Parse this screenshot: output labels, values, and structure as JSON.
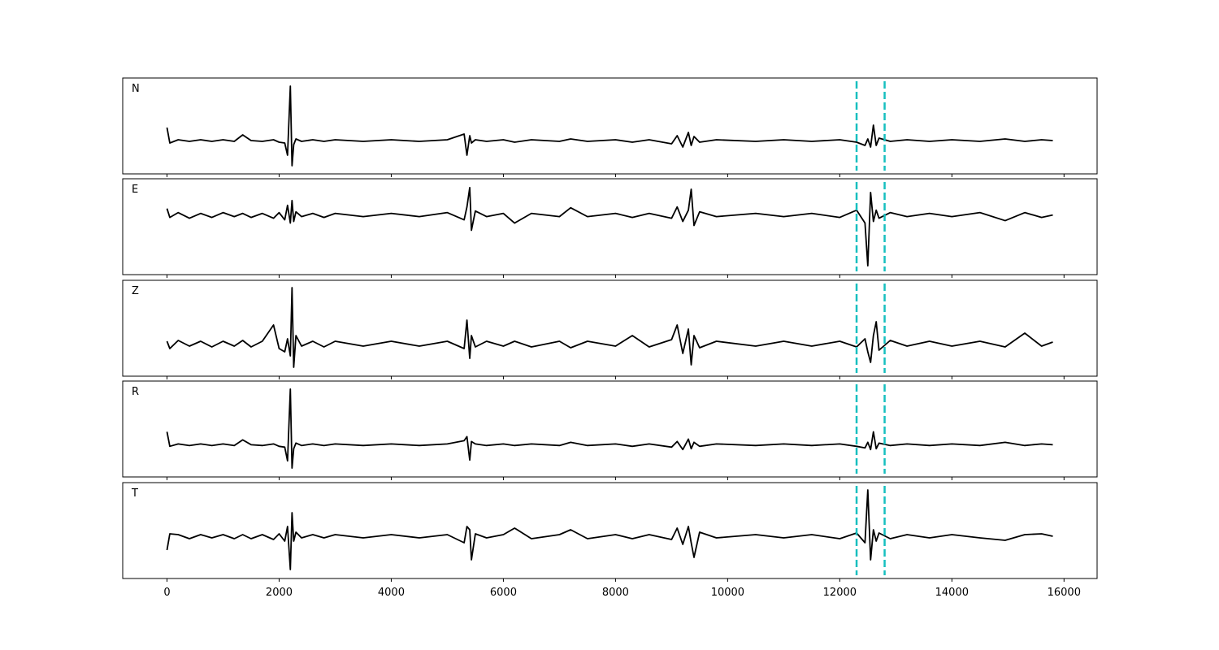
{
  "chart_data": {
    "type": "line",
    "x": [
      0,
      50,
      200,
      400,
      600,
      800,
      1000,
      1200,
      1350,
      1500,
      1700,
      1900,
      2000,
      2100,
      2150,
      2200,
      2230,
      2260,
      2300,
      2400,
      2600,
      2800,
      3000,
      3500,
      4000,
      4500,
      5000,
      5300,
      5350,
      5400,
      5430,
      5500,
      5700,
      6000,
      6200,
      6500,
      7000,
      7200,
      7500,
      8000,
      8300,
      8600,
      9000,
      9100,
      9200,
      9300,
      9350,
      9400,
      9500,
      9800,
      10500,
      11000,
      11500,
      12000,
      12300,
      12450,
      12500,
      12550,
      12600,
      12650,
      12700,
      12900,
      13200,
      13600,
      14000,
      14500,
      14950,
      15300,
      15600,
      15800
    ],
    "xlim": [
      -790,
      16590
    ],
    "xticks": [
      0,
      2000,
      4000,
      6000,
      8000,
      10000,
      12000,
      14000,
      16000
    ],
    "vlines": [
      12300,
      12800
    ],
    "vline_color": "#17bfbf",
    "series": [
      {
        "name": "N",
        "color": "#000000",
        "ylim": [
          -41,
          77
        ],
        "values": [
          16,
          -3,
          1,
          -1,
          1,
          -1,
          1,
          -1,
          7,
          0,
          -1,
          1,
          -2,
          -3,
          -18,
          67,
          -31,
          -5,
          2,
          -1,
          1,
          -1,
          1,
          -1,
          1,
          -1,
          1,
          8,
          -18,
          6,
          -3,
          1,
          -1,
          1,
          -2,
          1,
          -1,
          2,
          -1,
          1,
          -2,
          1,
          -4,
          6,
          -8,
          10,
          -6,
          5,
          -2,
          1,
          -1,
          1,
          -1,
          1,
          -2,
          -6,
          2,
          -8,
          19,
          -6,
          3,
          -1,
          1,
          -1,
          1,
          -1,
          2,
          -1,
          1,
          0
        ]
      },
      {
        "name": "E",
        "color": "#000000",
        "ylim": [
          -74,
          45
        ],
        "values": [
          8,
          -3,
          3,
          -4,
          2,
          -3,
          3,
          -2,
          2,
          -3,
          2,
          -4,
          3,
          -6,
          12,
          -10,
          18,
          -8,
          4,
          -2,
          2,
          -3,
          2,
          -2,
          2,
          -2,
          3,
          -6,
          10,
          34,
          -19,
          5,
          -2,
          2,
          -10,
          2,
          -2,
          9,
          -2,
          2,
          -3,
          2,
          -4,
          10,
          -8,
          6,
          32,
          -13,
          4,
          -2,
          2,
          -2,
          2,
          -3,
          6,
          -10,
          -63,
          28,
          -8,
          6,
          -4,
          3,
          -2,
          2,
          -2,
          3,
          -7,
          3,
          -3,
          0
        ]
      },
      {
        "name": "Z",
        "color": "#000000",
        "ylim": [
          -40,
          78
        ],
        "values": [
          3,
          -6,
          4,
          -3,
          3,
          -4,
          3,
          -3,
          4,
          -4,
          3,
          23,
          -6,
          -10,
          6,
          -15,
          69,
          -29,
          10,
          -3,
          3,
          -4,
          3,
          -3,
          3,
          -3,
          3,
          -6,
          29,
          -18,
          10,
          -4,
          3,
          -3,
          3,
          -4,
          3,
          -5,
          3,
          -3,
          10,
          -4,
          5,
          23,
          -12,
          18,
          -26,
          10,
          -5,
          3,
          -3,
          3,
          -3,
          3,
          -4,
          6,
          -10,
          -23,
          10,
          27,
          -8,
          4,
          -3,
          3,
          -3,
          3,
          -4,
          13,
          -3,
          2
        ]
      },
      {
        "name": "R",
        "color": "#000000",
        "ylim": [
          -40,
          79
        ],
        "values": [
          16,
          -2,
          1,
          -1,
          1,
          -1,
          1,
          -1,
          6,
          0,
          -1,
          1,
          -2,
          -3,
          -20,
          69,
          -29,
          -5,
          2,
          -1,
          1,
          -1,
          1,
          -1,
          1,
          -1,
          1,
          5,
          10,
          -19,
          4,
          1,
          -1,
          1,
          -1,
          1,
          -1,
          3,
          -1,
          1,
          -2,
          1,
          -3,
          4,
          -6,
          7,
          -5,
          3,
          -2,
          1,
          -1,
          1,
          -1,
          1,
          -2,
          -4,
          3,
          -6,
          16,
          -5,
          2,
          -1,
          1,
          -1,
          1,
          -1,
          3,
          -1,
          1,
          0
        ]
      },
      {
        "name": "T",
        "color": "#000000",
        "ylim": [
          -52,
          66
        ],
        "values": [
          -17,
          3,
          2,
          -3,
          2,
          -2,
          2,
          -3,
          2,
          -3,
          2,
          -4,
          3,
          -6,
          12,
          -41,
          29,
          -6,
          5,
          -2,
          2,
          -2,
          2,
          -2,
          2,
          -2,
          2,
          -8,
          12,
          8,
          -29,
          3,
          -2,
          2,
          10,
          -3,
          2,
          8,
          -3,
          2,
          -3,
          2,
          -4,
          10,
          -10,
          12,
          -8,
          -26,
          5,
          -2,
          2,
          -2,
          2,
          -3,
          4,
          -8,
          57,
          -29,
          8,
          -6,
          4,
          -3,
          2,
          -2,
          2,
          -2,
          -5,
          2,
          3,
          0
        ]
      }
    ]
  }
}
